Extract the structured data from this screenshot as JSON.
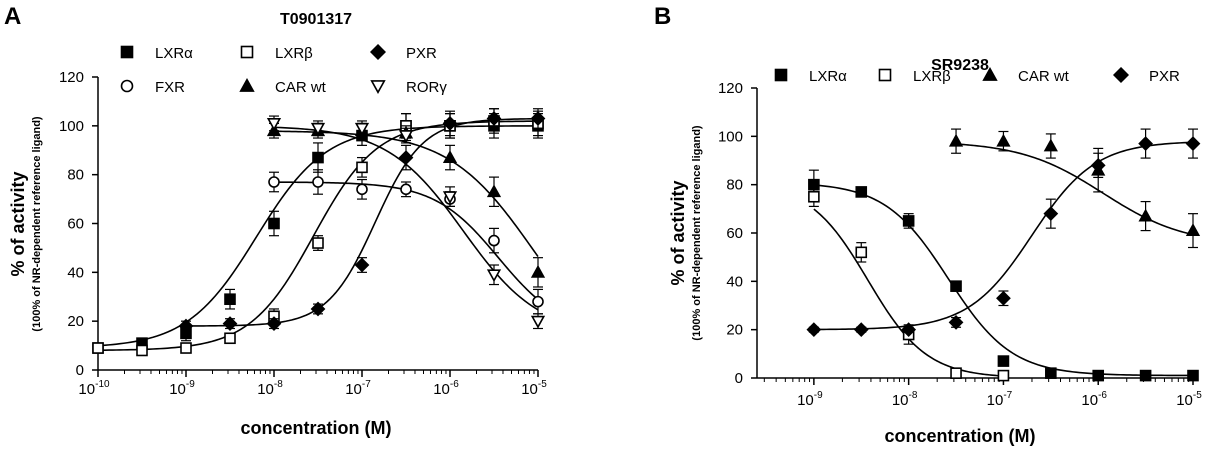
{
  "chart_data": [
    {
      "type": "scatter",
      "panel": "A",
      "title": "T0901317",
      "xlabel": "concentration (M)",
      "ylabel": "% of activity",
      "ylabel_sub": "(100% of NR-dependent reference ligand)",
      "xscale": "log",
      "xlim_exp": [
        -10,
        -5
      ],
      "x_ticks": [
        {
          "base": "10",
          "exp": "-10"
        },
        {
          "base": "10",
          "exp": "-9"
        },
        {
          "base": "10",
          "exp": "-8"
        },
        {
          "base": "10",
          "exp": "-7"
        },
        {
          "base": "10",
          "exp": "-6"
        },
        {
          "base": "10",
          "exp": "-5"
        }
      ],
      "ylim": [
        0,
        120
      ],
      "y_ticks": [
        "0",
        "20",
        "40",
        "60",
        "80",
        "100",
        "120"
      ],
      "legend_position": "top",
      "series": [
        {
          "name": "LXRα",
          "marker": "square-filled",
          "x_exp": [
            -10,
            -9.5,
            -9,
            -8.5,
            -8,
            -7.5,
            -7,
            -6.5,
            -6,
            -5.5,
            -5
          ],
          "y": [
            9,
            11,
            15,
            29,
            60,
            87,
            96,
            100,
            100,
            100,
            100
          ],
          "err": [
            1,
            2,
            3,
            4,
            5,
            6,
            4,
            5,
            5,
            5,
            5
          ],
          "curve": {
            "bottom": 9,
            "top": 100,
            "ec50_exp": -8.2,
            "hill": 1.1
          }
        },
        {
          "name": "LXRβ",
          "marker": "square-open",
          "x_exp": [
            -10,
            -9.5,
            -9,
            -8.5,
            -8,
            -7.5,
            -7,
            -6.5,
            -6,
            -5.5,
            -5
          ],
          "y": [
            9,
            8,
            9,
            13,
            22,
            52,
            83,
            100,
            100,
            102,
            101
          ],
          "err": [
            1,
            1,
            2,
            2,
            3,
            3,
            4,
            5,
            5,
            5,
            5
          ],
          "curve": {
            "bottom": 8,
            "top": 102,
            "ec50_exp": -7.55,
            "hill": 1.2
          }
        },
        {
          "name": "PXR",
          "marker": "diamond-filled",
          "x_exp": [
            -9,
            -8.5,
            -8,
            -7.5,
            -7,
            -6.5,
            -6,
            -5.5,
            -5
          ],
          "y": [
            18,
            19,
            19,
            25,
            43,
            87,
            101,
            103,
            103
          ],
          "err": [
            2,
            2,
            2,
            2,
            3,
            5,
            5,
            4,
            4
          ],
          "curve": {
            "bottom": 18,
            "top": 103,
            "ec50_exp": -6.85,
            "hill": 1.6
          }
        },
        {
          "name": "FXR",
          "marker": "circle-open",
          "x_exp": [
            -8,
            -7.5,
            -7,
            -6.5,
            -6,
            -5.5,
            -5
          ],
          "y": [
            77,
            77,
            74,
            74,
            70,
            53,
            28
          ],
          "err": [
            4,
            5,
            4,
            3,
            3,
            5,
            5
          ],
          "curve": {
            "bottom": 15,
            "top": 77,
            "ec50_exp": -5.45,
            "hill": 1.2,
            "decreasing": true
          }
        },
        {
          "name": "CAR wt",
          "marker": "triangle-filled",
          "x_exp": [
            -8,
            -7.5,
            -7,
            -6.5,
            -6,
            -5.5,
            -5
          ],
          "y": [
            98,
            98,
            98,
            97,
            87,
            73,
            40
          ],
          "err": [
            3,
            3,
            3,
            3,
            5,
            6,
            6
          ],
          "curve": {
            "bottom": 0,
            "top": 98,
            "ec50_exp": -5.05,
            "hill": 0.9,
            "decreasing": true
          }
        },
        {
          "name": "RORγ",
          "marker": "triangle-down-open",
          "x_exp": [
            -8,
            -7.5,
            -7,
            -6.5,
            -6,
            -5.5,
            -5
          ],
          "y": [
            101,
            99,
            99,
            96,
            71,
            39,
            20
          ],
          "err": [
            3,
            3,
            3,
            3,
            4,
            4,
            3
          ],
          "curve": {
            "bottom": 14,
            "top": 100,
            "ec50_exp": -5.85,
            "hill": 1.0,
            "decreasing": true
          }
        }
      ]
    },
    {
      "type": "scatter",
      "panel": "B",
      "title": "SR9238",
      "xlabel": "concentration (M)",
      "ylabel": "% of activity",
      "ylabel_sub": "(100% of NR-dependent reference ligand)",
      "xscale": "log",
      "xlim_exp": [
        -9.6,
        -5
      ],
      "x_ticks": [
        {
          "base": "10",
          "exp": "-9"
        },
        {
          "base": "10",
          "exp": "-8"
        },
        {
          "base": "10",
          "exp": "-7"
        },
        {
          "base": "10",
          "exp": "-6"
        },
        {
          "base": "10",
          "exp": "-5"
        }
      ],
      "ylim": [
        0,
        120
      ],
      "y_ticks": [
        "0",
        "20",
        "40",
        "60",
        "80",
        "100",
        "120"
      ],
      "legend_position": "top",
      "series": [
        {
          "name": "LXRα",
          "marker": "square-filled",
          "x_exp": [
            -9,
            -8.5,
            -8,
            -7.5,
            -7,
            -6.5,
            -6,
            -5.5,
            -5
          ],
          "y": [
            80,
            77,
            65,
            38,
            7,
            2,
            1,
            1,
            1
          ],
          "err": [
            6,
            2,
            3,
            2,
            2,
            1,
            1,
            1,
            1
          ],
          "curve": {
            "bottom": 1,
            "top": 81,
            "ec50_exp": -7.58,
            "hill": 1.3,
            "decreasing": true
          }
        },
        {
          "name": "LXRβ",
          "marker": "square-open",
          "x_exp": [
            -9,
            -8.5,
            -8,
            -7.5,
            -7
          ],
          "y": [
            75,
            52,
            18,
            2,
            1
          ],
          "err": [
            4,
            4,
            4,
            1,
            1
          ],
          "curve": {
            "bottom": 0,
            "top": 81,
            "ec50_exp": -8.43,
            "hill": 1.4,
            "decreasing": true
          }
        },
        {
          "name": "CAR wt",
          "marker": "triangle-filled",
          "x_exp": [
            -7.5,
            -7,
            -6.5,
            -6,
            -5.5,
            -5
          ],
          "y": [
            98,
            98,
            96,
            86,
            67,
            61
          ],
          "err": [
            5,
            4,
            5,
            9,
            6,
            7
          ],
          "curve": {
            "bottom": 55,
            "top": 98,
            "ec50_exp": -5.95,
            "hill": 1.0,
            "decreasing": true
          }
        },
        {
          "name": "PXR",
          "marker": "diamond-filled",
          "x_exp": [
            -9,
            -8.5,
            -8,
            -7.5,
            -7,
            -6.5,
            -6,
            -5.5,
            -5
          ],
          "y": [
            20,
            20,
            20,
            23,
            33,
            68,
            88,
            97,
            97
          ],
          "err": [
            1,
            1,
            1,
            2,
            3,
            6,
            5,
            6,
            6
          ],
          "curve": {
            "bottom": 20,
            "top": 98,
            "ec50_exp": -6.7,
            "hill": 1.3
          }
        }
      ]
    }
  ]
}
